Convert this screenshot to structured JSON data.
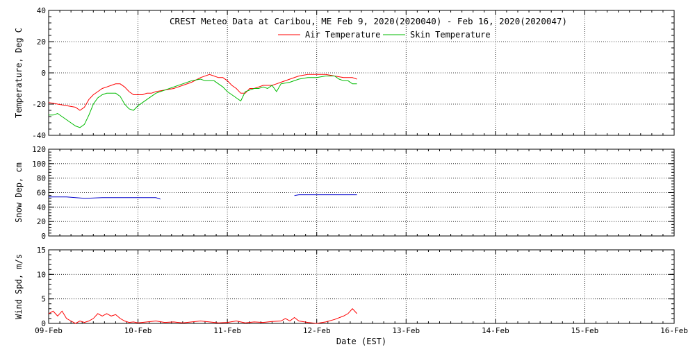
{
  "chart_data": {
    "type": "line",
    "title": "CREST Meteo Data at Caribou, ME   Feb  9, 2020(2020040) - Feb 16, 2020(2020047)",
    "xlabel": "Date (EST)",
    "x_ticks": [
      "09-Feb",
      "10-Feb",
      "11-Feb",
      "12-Feb",
      "13-Feb",
      "14-Feb",
      "15-Feb",
      "16-Feb"
    ],
    "xlim_days": [
      0,
      7
    ],
    "grid": true,
    "legend": {
      "placement": "top-center"
    },
    "panels": [
      {
        "id": "temperature",
        "ylabel": "Temperature, Deg C",
        "ylim": [
          -40,
          40
        ],
        "y_ticks": [
          -40,
          -20,
          0,
          20,
          40
        ],
        "series": [
          {
            "name": "Air Temperature",
            "color": "#ff0000",
            "points": [
              [
                0,
                -19
              ],
              [
                0.1,
                -20
              ],
              [
                0.2,
                -21
              ],
              [
                0.3,
                -22
              ],
              [
                0.35,
                -24
              ],
              [
                0.4,
                -22
              ],
              [
                0.45,
                -17
              ],
              [
                0.5,
                -14
              ],
              [
                0.55,
                -12
              ],
              [
                0.6,
                -10
              ],
              [
                0.65,
                -9
              ],
              [
                0.7,
                -8
              ],
              [
                0.75,
                -7
              ],
              [
                0.8,
                -7
              ],
              [
                0.85,
                -9
              ],
              [
                0.9,
                -12
              ],
              [
                0.95,
                -14
              ],
              [
                1.0,
                -14
              ],
              [
                1.05,
                -14
              ],
              [
                1.1,
                -13
              ],
              [
                1.15,
                -13
              ],
              [
                1.2,
                -12
              ],
              [
                1.3,
                -11
              ],
              [
                1.4,
                -10
              ],
              [
                1.5,
                -8
              ],
              [
                1.6,
                -6
              ],
              [
                1.7,
                -3
              ],
              [
                1.8,
                -1
              ],
              [
                1.85,
                -2
              ],
              [
                1.9,
                -3
              ],
              [
                1.95,
                -3
              ],
              [
                2.0,
                -5
              ],
              [
                2.05,
                -8
              ],
              [
                2.1,
                -10
              ],
              [
                2.15,
                -13
              ],
              [
                2.2,
                -13
              ],
              [
                2.25,
                -10
              ],
              [
                2.3,
                -10
              ],
              [
                2.35,
                -9
              ],
              [
                2.4,
                -8
              ],
              [
                2.5,
                -8
              ],
              [
                2.55,
                -7
              ],
              [
                2.6,
                -6
              ],
              [
                2.7,
                -4
              ],
              [
                2.8,
                -2
              ],
              [
                2.9,
                -1
              ],
              [
                3.0,
                -1
              ],
              [
                3.1,
                -1
              ],
              [
                3.2,
                -2
              ],
              [
                3.3,
                -3
              ],
              [
                3.4,
                -3
              ],
              [
                3.45,
                -4
              ]
            ]
          },
          {
            "name": "Skin Temperature",
            "color": "#00bb00",
            "points": [
              [
                0,
                -27
              ],
              [
                0.05,
                -27
              ],
              [
                0.1,
                -26
              ],
              [
                0.15,
                -28
              ],
              [
                0.2,
                -30
              ],
              [
                0.25,
                -32
              ],
              [
                0.3,
                -34
              ],
              [
                0.35,
                -35
              ],
              [
                0.4,
                -33
              ],
              [
                0.45,
                -27
              ],
              [
                0.5,
                -20
              ],
              [
                0.55,
                -16
              ],
              [
                0.6,
                -14
              ],
              [
                0.65,
                -13
              ],
              [
                0.7,
                -13
              ],
              [
                0.75,
                -13
              ],
              [
                0.8,
                -15
              ],
              [
                0.85,
                -20
              ],
              [
                0.9,
                -23
              ],
              [
                0.95,
                -24
              ],
              [
                1.0,
                -21
              ],
              [
                1.05,
                -19
              ],
              [
                1.1,
                -17
              ],
              [
                1.15,
                -15
              ],
              [
                1.2,
                -13
              ],
              [
                1.3,
                -11
              ],
              [
                1.4,
                -9
              ],
              [
                1.5,
                -7
              ],
              [
                1.6,
                -5
              ],
              [
                1.7,
                -4
              ],
              [
                1.75,
                -5
              ],
              [
                1.8,
                -5
              ],
              [
                1.85,
                -5
              ],
              [
                1.9,
                -7
              ],
              [
                1.95,
                -9
              ],
              [
                2.0,
                -12
              ],
              [
                2.05,
                -14
              ],
              [
                2.1,
                -16
              ],
              [
                2.15,
                -18
              ],
              [
                2.2,
                -12
              ],
              [
                2.25,
                -11
              ],
              [
                2.3,
                -10
              ],
              [
                2.35,
                -10
              ],
              [
                2.4,
                -9
              ],
              [
                2.45,
                -10
              ],
              [
                2.5,
                -8
              ],
              [
                2.55,
                -12
              ],
              [
                2.6,
                -7
              ],
              [
                2.7,
                -6
              ],
              [
                2.8,
                -4
              ],
              [
                2.9,
                -3
              ],
              [
                3.0,
                -3
              ],
              [
                3.1,
                -2
              ],
              [
                3.2,
                -2
              ],
              [
                3.25,
                -4
              ],
              [
                3.3,
                -5
              ],
              [
                3.35,
                -5
              ],
              [
                3.4,
                -7
              ],
              [
                3.45,
                -7
              ]
            ]
          }
        ]
      },
      {
        "id": "snow",
        "ylabel": "Snow Dep, cm",
        "ylim": [
          0,
          120
        ],
        "y_ticks": [
          0,
          20,
          40,
          60,
          80,
          100,
          120
        ],
        "series": [
          {
            "name": "",
            "color": "#0000cc",
            "segments": [
              [
                [
                  0,
                  54
                ],
                [
                  0.2,
                  54
                ],
                [
                  0.4,
                  52
                ],
                [
                  0.6,
                  53
                ],
                [
                  0.8,
                  53
                ],
                [
                  1.0,
                  53
                ],
                [
                  1.2,
                  53
                ],
                [
                  1.25,
                  51
                ]
              ],
              [
                [
                  2.75,
                  56
                ],
                [
                  2.8,
                  57
                ],
                [
                  3.0,
                  57
                ],
                [
                  3.2,
                  57
                ],
                [
                  3.4,
                  57
                ],
                [
                  3.45,
                  57
                ]
              ]
            ]
          }
        ]
      },
      {
        "id": "wind",
        "ylabel": "Wind Spd, m/s",
        "ylim": [
          0,
          15
        ],
        "y_ticks": [
          0,
          5,
          10,
          15
        ],
        "series": [
          {
            "name": "",
            "color": "#ff0000",
            "points": [
              [
                0,
                2
              ],
              [
                0.05,
                2.5
              ],
              [
                0.1,
                1.5
              ],
              [
                0.15,
                2.5
              ],
              [
                0.2,
                1
              ],
              [
                0.25,
                0.5
              ],
              [
                0.3,
                0
              ],
              [
                0.35,
                0.5
              ],
              [
                0.4,
                0.2
              ],
              [
                0.45,
                0.5
              ],
              [
                0.5,
                1
              ],
              [
                0.55,
                2
              ],
              [
                0.6,
                1.5
              ],
              [
                0.65,
                2
              ],
              [
                0.7,
                1.5
              ],
              [
                0.75,
                1.8
              ],
              [
                0.8,
                1
              ],
              [
                0.85,
                0.5
              ],
              [
                0.9,
                0.2
              ],
              [
                0.95,
                0.3
              ],
              [
                1.0,
                0.1
              ],
              [
                1.1,
                0.3
              ],
              [
                1.2,
                0.5
              ],
              [
                1.3,
                0.2
              ],
              [
                1.4,
                0.3
              ],
              [
                1.5,
                0.1
              ],
              [
                1.6,
                0.3
              ],
              [
                1.7,
                0.5
              ],
              [
                1.8,
                0.3
              ],
              [
                1.9,
                0.1
              ],
              [
                2.0,
                0.2
              ],
              [
                2.1,
                0.5
              ],
              [
                2.2,
                0.1
              ],
              [
                2.3,
                0.3
              ],
              [
                2.4,
                0.2
              ],
              [
                2.5,
                0.4
              ],
              [
                2.6,
                0.5
              ],
              [
                2.65,
                1
              ],
              [
                2.7,
                0.5
              ],
              [
                2.75,
                1.2
              ],
              [
                2.8,
                0.5
              ],
              [
                2.9,
                0.2
              ],
              [
                3.0,
                0
              ],
              [
                3.1,
                0.3
              ],
              [
                3.2,
                0.8
              ],
              [
                3.3,
                1.5
              ],
              [
                3.35,
                2
              ],
              [
                3.4,
                3
              ],
              [
                3.45,
                2
              ]
            ]
          }
        ]
      }
    ]
  }
}
